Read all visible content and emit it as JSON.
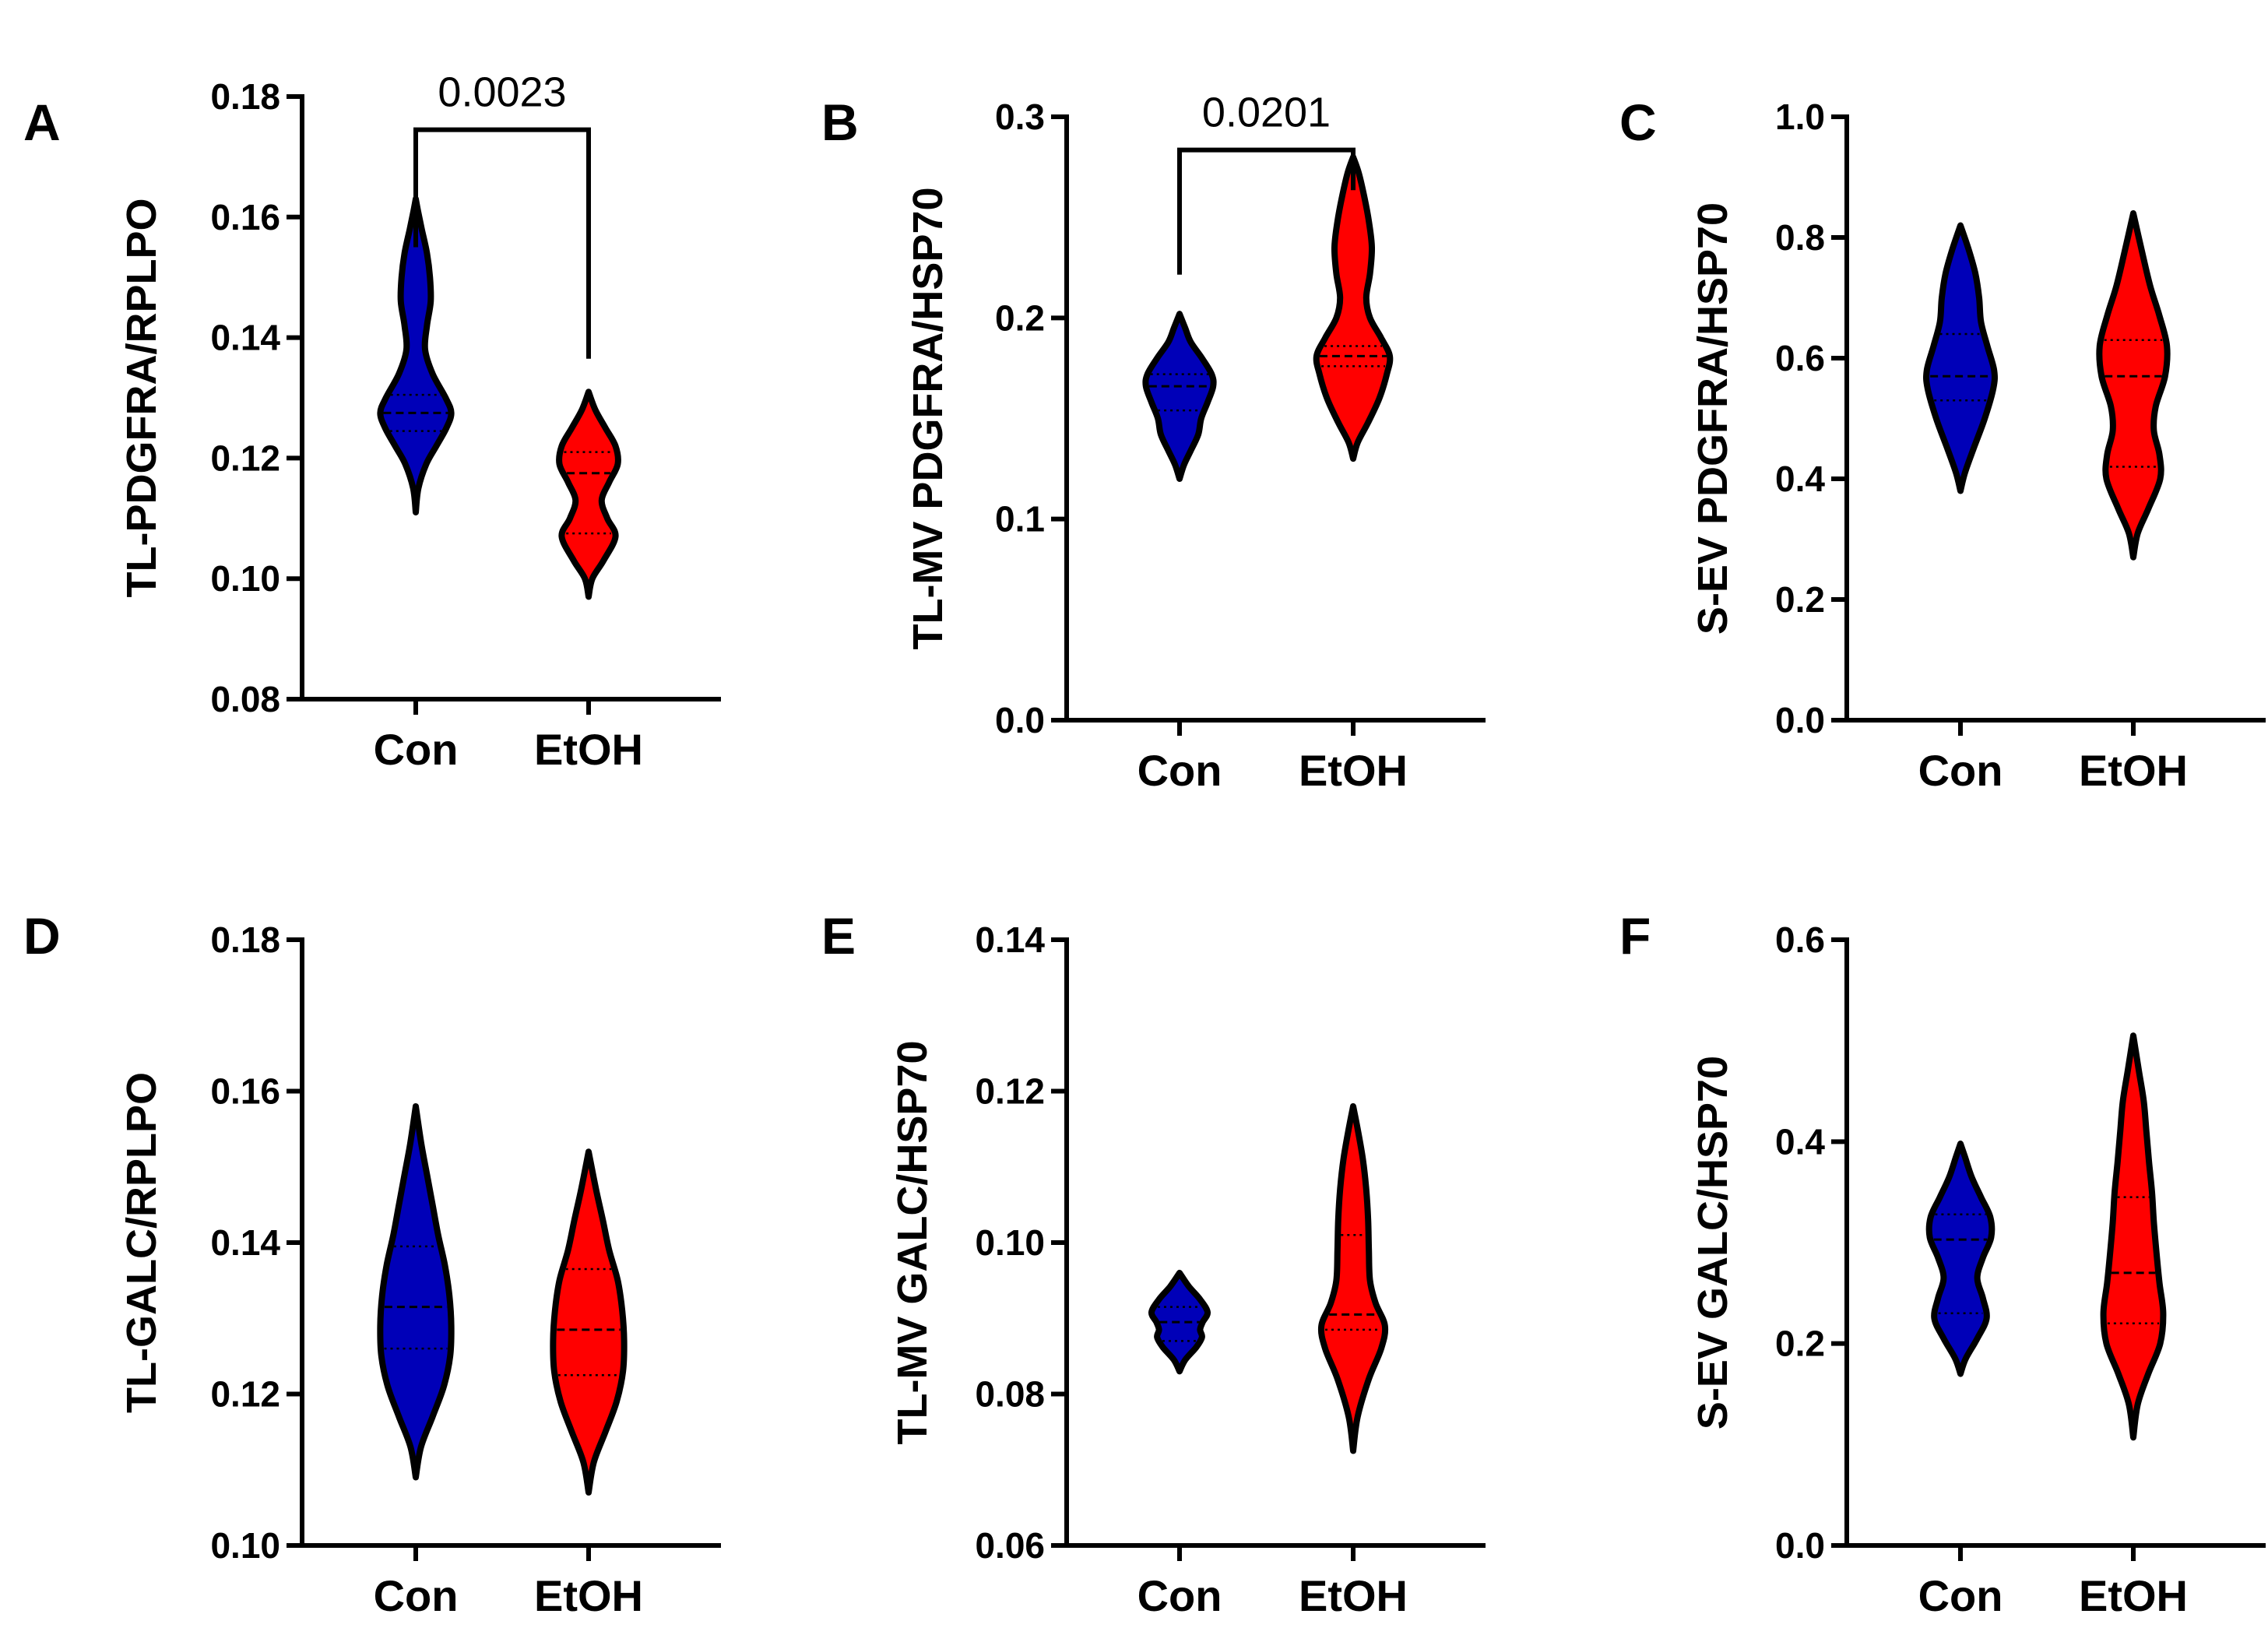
{
  "colors": {
    "con": "#0000B8",
    "etoh": "#FF0000",
    "outline": "#000000"
  },
  "chart_data": [
    {
      "panel": "A",
      "type": "violin",
      "ylabel": "TL-PDGFRA/RPLPO",
      "ylim": [
        0.08,
        0.18
      ],
      "yticks": [
        0.08,
        0.1,
        0.12,
        0.14,
        0.16,
        0.18
      ],
      "tick_labels": [
        "0.08",
        "0.10",
        "0.12",
        "0.14",
        "0.16",
        "0.18"
      ],
      "categories": [
        "Con",
        "EtOH"
      ],
      "significance": {
        "label": "0.0023",
        "bracket_top": 0.1745,
        "left_start": 0.155,
        "right_start": 0.1365
      },
      "violins": [
        {
          "group": "Con",
          "min": 0.111,
          "max": 0.163,
          "median": 0.1275,
          "q1": 0.1245,
          "q3": 0.1305,
          "profile": [
            [
              0.111,
              0
            ],
            [
              0.115,
              0.07
            ],
            [
              0.119,
              0.28
            ],
            [
              0.122,
              0.55
            ],
            [
              0.125,
              0.82
            ],
            [
              0.1275,
              0.95
            ],
            [
              0.13,
              0.8
            ],
            [
              0.134,
              0.45
            ],
            [
              0.138,
              0.25
            ],
            [
              0.142,
              0.3
            ],
            [
              0.146,
              0.4
            ],
            [
              0.15,
              0.38
            ],
            [
              0.154,
              0.3
            ],
            [
              0.158,
              0.16
            ],
            [
              0.161,
              0.06
            ],
            [
              0.163,
              0
            ]
          ]
        },
        {
          "group": "EtOH",
          "min": 0.097,
          "max": 0.131,
          "median": 0.1175,
          "q1": 0.1075,
          "q3": 0.121,
          "profile": [
            [
              0.097,
              0
            ],
            [
              0.1,
              0.1
            ],
            [
              0.103,
              0.4
            ],
            [
              0.107,
              0.72
            ],
            [
              0.11,
              0.5
            ],
            [
              0.113,
              0.35
            ],
            [
              0.116,
              0.55
            ],
            [
              0.119,
              0.78
            ],
            [
              0.122,
              0.72
            ],
            [
              0.125,
              0.45
            ],
            [
              0.128,
              0.18
            ],
            [
              0.131,
              0
            ]
          ]
        }
      ]
    },
    {
      "panel": "B",
      "type": "violin",
      "ylabel": "TL-MV PDGFRA/HSP70",
      "ylim": [
        0.0,
        0.3
      ],
      "yticks": [
        0.0,
        0.1,
        0.2,
        0.3
      ],
      "tick_labels": [
        "0.0",
        "0.1",
        "0.2",
        "0.3"
      ],
      "categories": [
        "Con",
        "EtOH"
      ],
      "significance": {
        "label": "0.0201",
        "bracket_top": 0.2835,
        "left_start": 0.2215,
        "right_start": 0.2635
      },
      "violins": [
        {
          "group": "Con",
          "min": 0.12,
          "max": 0.202,
          "median": 0.166,
          "q1": 0.154,
          "q3": 0.172,
          "profile": [
            [
              0.12,
              0
            ],
            [
              0.127,
              0.12
            ],
            [
              0.134,
              0.3
            ],
            [
              0.142,
              0.5
            ],
            [
              0.15,
              0.58
            ],
            [
              0.158,
              0.75
            ],
            [
              0.166,
              0.9
            ],
            [
              0.172,
              0.86
            ],
            [
              0.18,
              0.6
            ],
            [
              0.188,
              0.3
            ],
            [
              0.195,
              0.15
            ],
            [
              0.202,
              0
            ]
          ]
        },
        {
          "group": "EtOH",
          "min": 0.13,
          "max": 0.28,
          "median": 0.181,
          "q1": 0.176,
          "q3": 0.186,
          "profile": [
            [
              0.13,
              0
            ],
            [
              0.138,
              0.12
            ],
            [
              0.148,
              0.4
            ],
            [
              0.16,
              0.7
            ],
            [
              0.172,
              0.9
            ],
            [
              0.181,
              0.98
            ],
            [
              0.19,
              0.75
            ],
            [
              0.2,
              0.45
            ],
            [
              0.21,
              0.35
            ],
            [
              0.222,
              0.45
            ],
            [
              0.235,
              0.5
            ],
            [
              0.248,
              0.42
            ],
            [
              0.26,
              0.3
            ],
            [
              0.272,
              0.15
            ],
            [
              0.28,
              0
            ]
          ]
        }
      ]
    },
    {
      "panel": "C",
      "type": "violin",
      "ylabel": "S-EV PDGFRA/HSP70",
      "ylim": [
        0.0,
        1.0
      ],
      "yticks": [
        0.0,
        0.2,
        0.4,
        0.6,
        0.8,
        1.0
      ],
      "tick_labels": [
        "0.0",
        "0.2",
        "0.4",
        "0.6",
        "0.8",
        "1.0"
      ],
      "categories": [
        "Con",
        "EtOH"
      ],
      "violins": [
        {
          "group": "Con",
          "min": 0.38,
          "max": 0.82,
          "median": 0.57,
          "q1": 0.53,
          "q3": 0.64,
          "profile": [
            [
              0.38,
              0
            ],
            [
              0.41,
              0.12
            ],
            [
              0.45,
              0.35
            ],
            [
              0.5,
              0.65
            ],
            [
              0.55,
              0.88
            ],
            [
              0.58,
              0.9
            ],
            [
              0.62,
              0.72
            ],
            [
              0.66,
              0.55
            ],
            [
              0.7,
              0.5
            ],
            [
              0.74,
              0.4
            ],
            [
              0.78,
              0.22
            ],
            [
              0.82,
              0
            ]
          ]
        },
        {
          "group": "EtOH",
          "min": 0.27,
          "max": 0.84,
          "median": 0.57,
          "q1": 0.42,
          "q3": 0.63,
          "profile": [
            [
              0.27,
              0
            ],
            [
              0.31,
              0.12
            ],
            [
              0.35,
              0.4
            ],
            [
              0.4,
              0.72
            ],
            [
              0.44,
              0.7
            ],
            [
              0.48,
              0.55
            ],
            [
              0.52,
              0.6
            ],
            [
              0.57,
              0.85
            ],
            [
              0.62,
              0.9
            ],
            [
              0.67,
              0.7
            ],
            [
              0.72,
              0.45
            ],
            [
              0.78,
              0.22
            ],
            [
              0.84,
              0
            ]
          ]
        }
      ]
    },
    {
      "panel": "D",
      "type": "violin",
      "ylabel": "TL-GALC/RPLPO",
      "ylim": [
        0.1,
        0.18
      ],
      "yticks": [
        0.1,
        0.12,
        0.14,
        0.16,
        0.18
      ],
      "tick_labels": [
        "0.10",
        "0.12",
        "0.14",
        "0.16",
        "0.18"
      ],
      "categories": [
        "Con",
        "EtOH"
      ],
      "violins": [
        {
          "group": "Con",
          "min": 0.109,
          "max": 0.158,
          "median": 0.1315,
          "q1": 0.126,
          "q3": 0.1395,
          "profile": [
            [
              0.109,
              0
            ],
            [
              0.113,
              0.14
            ],
            [
              0.117,
              0.45
            ],
            [
              0.121,
              0.75
            ],
            [
              0.125,
              0.92
            ],
            [
              0.129,
              0.95
            ],
            [
              0.133,
              0.9
            ],
            [
              0.137,
              0.78
            ],
            [
              0.141,
              0.6
            ],
            [
              0.145,
              0.45
            ],
            [
              0.149,
              0.3
            ],
            [
              0.153,
              0.15
            ],
            [
              0.158,
              0
            ]
          ]
        },
        {
          "group": "EtOH",
          "min": 0.107,
          "max": 0.152,
          "median": 0.1285,
          "q1": 0.1225,
          "q3": 0.1365,
          "profile": [
            [
              0.107,
              0
            ],
            [
              0.111,
              0.14
            ],
            [
              0.115,
              0.45
            ],
            [
              0.119,
              0.75
            ],
            [
              0.123,
              0.92
            ],
            [
              0.127,
              0.95
            ],
            [
              0.131,
              0.9
            ],
            [
              0.135,
              0.78
            ],
            [
              0.139,
              0.55
            ],
            [
              0.143,
              0.38
            ],
            [
              0.147,
              0.2
            ],
            [
              0.152,
              0
            ]
          ]
        }
      ]
    },
    {
      "panel": "E",
      "type": "violin",
      "ylabel": "TL-MV GALC/HSP70",
      "ylim": [
        0.06,
        0.14
      ],
      "yticks": [
        0.06,
        0.08,
        0.1,
        0.12,
        0.14
      ],
      "tick_labels": [
        "0.06",
        "0.08",
        "0.10",
        "0.12",
        "0.14"
      ],
      "categories": [
        "Con",
        "EtOH"
      ],
      "violins": [
        {
          "group": "Con",
          "min": 0.083,
          "max": 0.096,
          "median": 0.0895,
          "q1": 0.087,
          "q3": 0.0915,
          "profile": [
            [
              0.083,
              0
            ],
            [
              0.0845,
              0.15
            ],
            [
              0.0862,
              0.45
            ],
            [
              0.0875,
              0.6
            ],
            [
              0.0885,
              0.55
            ],
            [
              0.0895,
              0.62
            ],
            [
              0.0908,
              0.75
            ],
            [
              0.0925,
              0.55
            ],
            [
              0.0942,
              0.25
            ],
            [
              0.096,
              0
            ]
          ]
        },
        {
          "group": "EtOH",
          "min": 0.0725,
          "max": 0.118,
          "median": 0.0905,
          "q1": 0.0885,
          "q3": 0.101,
          "profile": [
            [
              0.0725,
              0
            ],
            [
              0.077,
              0.12
            ],
            [
              0.082,
              0.42
            ],
            [
              0.086,
              0.75
            ],
            [
              0.089,
              0.85
            ],
            [
              0.092,
              0.6
            ],
            [
              0.095,
              0.45
            ],
            [
              0.099,
              0.42
            ],
            [
              0.103,
              0.4
            ],
            [
              0.107,
              0.35
            ],
            [
              0.111,
              0.26
            ],
            [
              0.115,
              0.12
            ],
            [
              0.118,
              0
            ]
          ]
        }
      ]
    },
    {
      "panel": "F",
      "type": "violin",
      "ylabel": "S-EV GALC/HSP70",
      "ylim": [
        0.0,
        0.6
      ],
      "yticks": [
        0.0,
        0.2,
        0.4,
        0.6
      ],
      "tick_labels": [
        "0.0",
        "0.2",
        "0.4",
        "0.6"
      ],
      "categories": [
        "Con",
        "EtOH"
      ],
      "violins": [
        {
          "group": "Con",
          "min": 0.17,
          "max": 0.398,
          "median": 0.303,
          "q1": 0.23,
          "q3": 0.328,
          "profile": [
            [
              0.17,
              0
            ],
            [
              0.185,
              0.14
            ],
            [
              0.205,
              0.45
            ],
            [
              0.225,
              0.7
            ],
            [
              0.245,
              0.6
            ],
            [
              0.265,
              0.45
            ],
            [
              0.285,
              0.6
            ],
            [
              0.305,
              0.82
            ],
            [
              0.325,
              0.8
            ],
            [
              0.345,
              0.55
            ],
            [
              0.365,
              0.3
            ],
            [
              0.385,
              0.12
            ],
            [
              0.398,
              0
            ]
          ]
        },
        {
          "group": "EtOH",
          "min": 0.107,
          "max": 0.505,
          "median": 0.27,
          "q1": 0.22,
          "q3": 0.345,
          "profile": [
            [
              0.107,
              0
            ],
            [
              0.14,
              0.12
            ],
            [
              0.17,
              0.4
            ],
            [
              0.2,
              0.72
            ],
            [
              0.23,
              0.8
            ],
            [
              0.26,
              0.7
            ],
            [
              0.29,
              0.62
            ],
            [
              0.32,
              0.55
            ],
            [
              0.35,
              0.5
            ],
            [
              0.38,
              0.42
            ],
            [
              0.41,
              0.35
            ],
            [
              0.44,
              0.28
            ],
            [
              0.47,
              0.15
            ],
            [
              0.505,
              0
            ]
          ]
        }
      ]
    }
  ]
}
